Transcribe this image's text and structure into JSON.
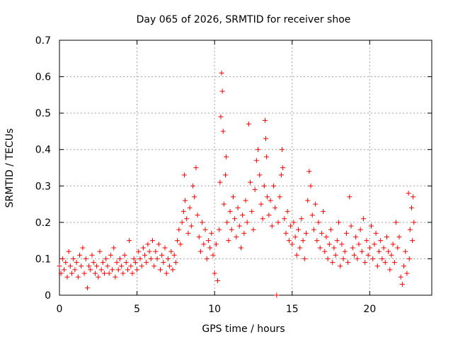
{
  "chart_data": {
    "type": "scatter",
    "title": "Day 065 of 2026, SRMTID for receiver shoe",
    "xlabel": "GPS time / hours",
    "ylabel": "SRMTID / TECUs",
    "xlim": [
      0,
      24
    ],
    "ylim": [
      0,
      0.7
    ],
    "xticks": [
      0,
      5,
      10,
      15,
      20
    ],
    "yticks": [
      0,
      0.1,
      0.2,
      0.3,
      0.4,
      0.5,
      0.6,
      0.7
    ],
    "xtick_labels": [
      "0",
      "5",
      "10",
      "15",
      "20"
    ],
    "ytick_labels": [
      "0",
      "0.1",
      "0.2",
      "0.3",
      "0.4",
      "0.5",
      "0.6",
      "0.7"
    ],
    "grid": true,
    "marker": "+",
    "color": "#ff0000",
    "series": [
      {
        "name": "SRMTID",
        "points": [
          [
            0.0,
            0.08
          ],
          [
            0.1,
            0.06
          ],
          [
            0.2,
            0.1
          ],
          [
            0.3,
            0.07
          ],
          [
            0.4,
            0.09
          ],
          [
            0.5,
            0.05
          ],
          [
            0.6,
            0.12
          ],
          [
            0.7,
            0.08
          ],
          [
            0.8,
            0.06
          ],
          [
            0.9,
            0.1
          ],
          [
            1.0,
            0.07
          ],
          [
            1.1,
            0.09
          ],
          [
            1.2,
            0.05
          ],
          [
            1.3,
            0.11
          ],
          [
            1.4,
            0.08
          ],
          [
            1.5,
            0.13
          ],
          [
            1.6,
            0.06
          ],
          [
            1.7,
            0.1
          ],
          [
            1.8,
            0.02
          ],
          [
            1.9,
            0.08
          ],
          [
            2.0,
            0.07
          ],
          [
            2.1,
            0.11
          ],
          [
            2.2,
            0.09
          ],
          [
            2.3,
            0.06
          ],
          [
            2.4,
            0.08
          ],
          [
            2.5,
            0.05
          ],
          [
            2.6,
            0.12
          ],
          [
            2.7,
            0.07
          ],
          [
            2.8,
            0.09
          ],
          [
            2.9,
            0.06
          ],
          [
            3.0,
            0.1
          ],
          [
            3.1,
            0.08
          ],
          [
            3.2,
            0.06
          ],
          [
            3.3,
            0.11
          ],
          [
            3.4,
            0.07
          ],
          [
            3.5,
            0.13
          ],
          [
            3.6,
            0.05
          ],
          [
            3.7,
            0.09
          ],
          [
            3.8,
            0.07
          ],
          [
            3.9,
            0.1
          ],
          [
            4.0,
            0.08
          ],
          [
            4.1,
            0.06
          ],
          [
            4.2,
            0.11
          ],
          [
            4.3,
            0.09
          ],
          [
            4.4,
            0.07
          ],
          [
            4.5,
            0.15
          ],
          [
            4.6,
            0.08
          ],
          [
            4.7,
            0.06
          ],
          [
            4.8,
            0.1
          ],
          [
            4.9,
            0.09
          ],
          [
            5.0,
            0.07
          ],
          [
            5.1,
            0.12
          ],
          [
            5.2,
            0.1
          ],
          [
            5.3,
            0.08
          ],
          [
            5.4,
            0.13
          ],
          [
            5.5,
            0.11
          ],
          [
            5.6,
            0.09
          ],
          [
            5.7,
            0.14
          ],
          [
            5.8,
            0.12
          ],
          [
            5.9,
            0.1
          ],
          [
            6.0,
            0.15
          ],
          [
            6.1,
            0.08
          ],
          [
            6.2,
            0.12
          ],
          [
            6.3,
            0.1
          ],
          [
            6.4,
            0.14
          ],
          [
            6.5,
            0.07
          ],
          [
            6.6,
            0.11
          ],
          [
            6.7,
            0.09
          ],
          [
            6.8,
            0.13
          ],
          [
            6.9,
            0.06
          ],
          [
            7.0,
            0.1
          ],
          [
            7.1,
            0.08
          ],
          [
            7.2,
            0.12
          ],
          [
            7.3,
            0.07
          ],
          [
            7.4,
            0.11
          ],
          [
            7.5,
            0.09
          ],
          [
            7.6,
            0.15
          ],
          [
            7.7,
            0.18
          ],
          [
            7.8,
            0.14
          ],
          [
            7.9,
            0.2
          ],
          [
            8.0,
            0.23
          ],
          [
            8.05,
            0.33
          ],
          [
            8.1,
            0.26
          ],
          [
            8.2,
            0.21
          ],
          [
            8.3,
            0.17
          ],
          [
            8.4,
            0.24
          ],
          [
            8.5,
            0.19
          ],
          [
            8.6,
            0.3
          ],
          [
            8.7,
            0.27
          ],
          [
            8.8,
            0.35
          ],
          [
            8.9,
            0.22
          ],
          [
            9.0,
            0.16
          ],
          [
            9.1,
            0.12
          ],
          [
            9.2,
            0.2
          ],
          [
            9.3,
            0.14
          ],
          [
            9.4,
            0.18
          ],
          [
            9.5,
            0.1
          ],
          [
            9.6,
            0.15
          ],
          [
            9.7,
            0.13
          ],
          [
            9.8,
            0.17
          ],
          [
            9.9,
            0.11
          ],
          [
            10.0,
            0.06
          ],
          [
            10.1,
            0.14
          ],
          [
            10.2,
            0.04
          ],
          [
            10.3,
            0.18
          ],
          [
            10.35,
            0.31
          ],
          [
            10.4,
            0.49
          ],
          [
            10.45,
            0.61
          ],
          [
            10.5,
            0.56
          ],
          [
            10.55,
            0.45
          ],
          [
            10.6,
            0.25
          ],
          [
            10.7,
            0.33
          ],
          [
            10.75,
            0.38
          ],
          [
            10.8,
            0.2
          ],
          [
            10.9,
            0.15
          ],
          [
            11.0,
            0.23
          ],
          [
            11.1,
            0.18
          ],
          [
            11.2,
            0.27
          ],
          [
            11.3,
            0.21
          ],
          [
            11.4,
            0.16
          ],
          [
            11.5,
            0.24
          ],
          [
            11.6,
            0.19
          ],
          [
            11.7,
            0.13
          ],
          [
            11.8,
            0.22
          ],
          [
            11.9,
            0.17
          ],
          [
            12.0,
            0.26
          ],
          [
            12.1,
            0.2
          ],
          [
            12.2,
            0.47
          ],
          [
            12.3,
            0.31
          ],
          [
            12.4,
            0.23
          ],
          [
            12.5,
            0.18
          ],
          [
            12.6,
            0.29
          ],
          [
            12.7,
            0.37
          ],
          [
            12.8,
            0.4
          ],
          [
            12.9,
            0.33
          ],
          [
            13.0,
            0.25
          ],
          [
            13.1,
            0.21
          ],
          [
            13.2,
            0.3
          ],
          [
            13.25,
            0.48
          ],
          [
            13.3,
            0.43
          ],
          [
            13.35,
            0.38
          ],
          [
            13.4,
            0.27
          ],
          [
            13.5,
            0.22
          ],
          [
            13.6,
            0.26
          ],
          [
            13.7,
            0.19
          ],
          [
            13.8,
            0.3
          ],
          [
            13.9,
            0.24
          ],
          [
            14.0,
            0.0
          ],
          [
            14.1,
            0.2
          ],
          [
            14.2,
            0.27
          ],
          [
            14.3,
            0.33
          ],
          [
            14.35,
            0.4
          ],
          [
            14.4,
            0.35
          ],
          [
            14.5,
            0.21
          ],
          [
            14.6,
            0.17
          ],
          [
            14.7,
            0.23
          ],
          [
            14.8,
            0.15
          ],
          [
            14.9,
            0.19
          ],
          [
            15.0,
            0.14
          ],
          [
            15.1,
            0.2
          ],
          [
            15.2,
            0.16
          ],
          [
            15.3,
            0.11
          ],
          [
            15.4,
            0.18
          ],
          [
            15.5,
            0.13
          ],
          [
            15.6,
            0.21
          ],
          [
            15.7,
            0.15
          ],
          [
            15.8,
            0.1
          ],
          [
            15.9,
            0.17
          ],
          [
            16.0,
            0.26
          ],
          [
            16.1,
            0.34
          ],
          [
            16.2,
            0.3
          ],
          [
            16.3,
            0.22
          ],
          [
            16.4,
            0.18
          ],
          [
            16.5,
            0.25
          ],
          [
            16.6,
            0.15
          ],
          [
            16.7,
            0.2
          ],
          [
            16.8,
            0.13
          ],
          [
            16.9,
            0.17
          ],
          [
            17.0,
            0.23
          ],
          [
            17.1,
            0.12
          ],
          [
            17.2,
            0.16
          ],
          [
            17.3,
            0.1
          ],
          [
            17.4,
            0.14
          ],
          [
            17.5,
            0.18
          ],
          [
            17.6,
            0.09
          ],
          [
            17.7,
            0.13
          ],
          [
            17.8,
            0.11
          ],
          [
            17.9,
            0.15
          ],
          [
            18.0,
            0.2
          ],
          [
            18.1,
            0.08
          ],
          [
            18.2,
            0.14
          ],
          [
            18.3,
            0.1
          ],
          [
            18.4,
            0.12
          ],
          [
            18.5,
            0.17
          ],
          [
            18.6,
            0.09
          ],
          [
            18.7,
            0.27
          ],
          [
            18.8,
            0.19
          ],
          [
            18.9,
            0.13
          ],
          [
            19.0,
            0.11
          ],
          [
            19.1,
            0.16
          ],
          [
            19.2,
            0.1
          ],
          [
            19.3,
            0.14
          ],
          [
            19.4,
            0.18
          ],
          [
            19.5,
            0.12
          ],
          [
            19.6,
            0.21
          ],
          [
            19.7,
            0.09
          ],
          [
            19.8,
            0.15
          ],
          [
            19.9,
            0.11
          ],
          [
            20.0,
            0.13
          ],
          [
            20.1,
            0.19
          ],
          [
            20.2,
            0.1
          ],
          [
            20.3,
            0.14
          ],
          [
            20.4,
            0.17
          ],
          [
            20.5,
            0.08
          ],
          [
            20.6,
            0.12
          ],
          [
            20.7,
            0.15
          ],
          [
            20.8,
            0.1
          ],
          [
            20.9,
            0.13
          ],
          [
            21.0,
            0.09
          ],
          [
            21.1,
            0.16
          ],
          [
            21.2,
            0.12
          ],
          [
            21.3,
            0.07
          ],
          [
            21.4,
            0.11
          ],
          [
            21.5,
            0.14
          ],
          [
            21.6,
            0.09
          ],
          [
            21.7,
            0.2
          ],
          [
            21.8,
            0.13
          ],
          [
            21.9,
            0.16
          ],
          [
            22.0,
            0.05
          ],
          [
            22.1,
            0.03
          ],
          [
            22.2,
            0.08
          ],
          [
            22.3,
            0.12
          ],
          [
            22.4,
            0.06
          ],
          [
            22.5,
            0.28
          ],
          [
            22.55,
            0.1
          ],
          [
            22.6,
            0.18
          ],
          [
            22.7,
            0.24
          ],
          [
            22.75,
            0.15
          ],
          [
            22.8,
            0.27
          ],
          [
            22.85,
            0.2
          ]
        ]
      }
    ]
  }
}
